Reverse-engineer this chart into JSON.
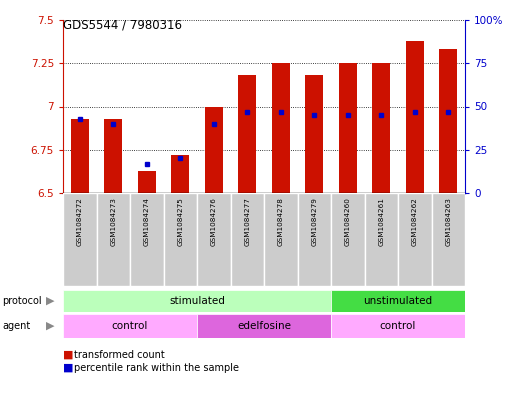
{
  "title": "GDS5544 / 7980316",
  "samples": [
    "GSM1084272",
    "GSM1084273",
    "GSM1084274",
    "GSM1084275",
    "GSM1084276",
    "GSM1084277",
    "GSM1084278",
    "GSM1084279",
    "GSM1084260",
    "GSM1084261",
    "GSM1084262",
    "GSM1084263"
  ],
  "transformed_count": [
    6.93,
    6.93,
    6.63,
    6.72,
    7.0,
    7.18,
    7.25,
    7.18,
    7.25,
    7.25,
    7.38,
    7.33
  ],
  "percentile_rank": [
    43,
    40,
    17,
    20,
    40,
    47,
    47,
    45,
    45,
    45,
    47,
    47
  ],
  "ylim": [
    6.5,
    7.5
  ],
  "yticks_left": [
    6.5,
    6.75,
    7.0,
    7.25,
    7.5
  ],
  "ytick_left_labels": [
    "6.5",
    "6.75",
    "7",
    "7.25",
    "7.5"
  ],
  "yticks_right": [
    0,
    25,
    50,
    75,
    100
  ],
  "ytick_right_labels": [
    "0",
    "25",
    "50",
    "75",
    "100%"
  ],
  "bar_color": "#cc1100",
  "dot_color": "#0000cc",
  "protocol_groups": [
    {
      "label": "stimulated",
      "start": 0,
      "end": 7,
      "color": "#bbffbb"
    },
    {
      "label": "unstimulated",
      "start": 8,
      "end": 11,
      "color": "#44dd44"
    }
  ],
  "agent_groups": [
    {
      "label": "control",
      "start": 0,
      "end": 3,
      "color": "#ffaaff"
    },
    {
      "label": "edelfosine",
      "start": 4,
      "end": 7,
      "color": "#dd66dd"
    },
    {
      "label": "control",
      "start": 8,
      "end": 11,
      "color": "#ffaaff"
    }
  ],
  "label_bg_color": "#cccccc",
  "label_border_color": "#ffffff"
}
